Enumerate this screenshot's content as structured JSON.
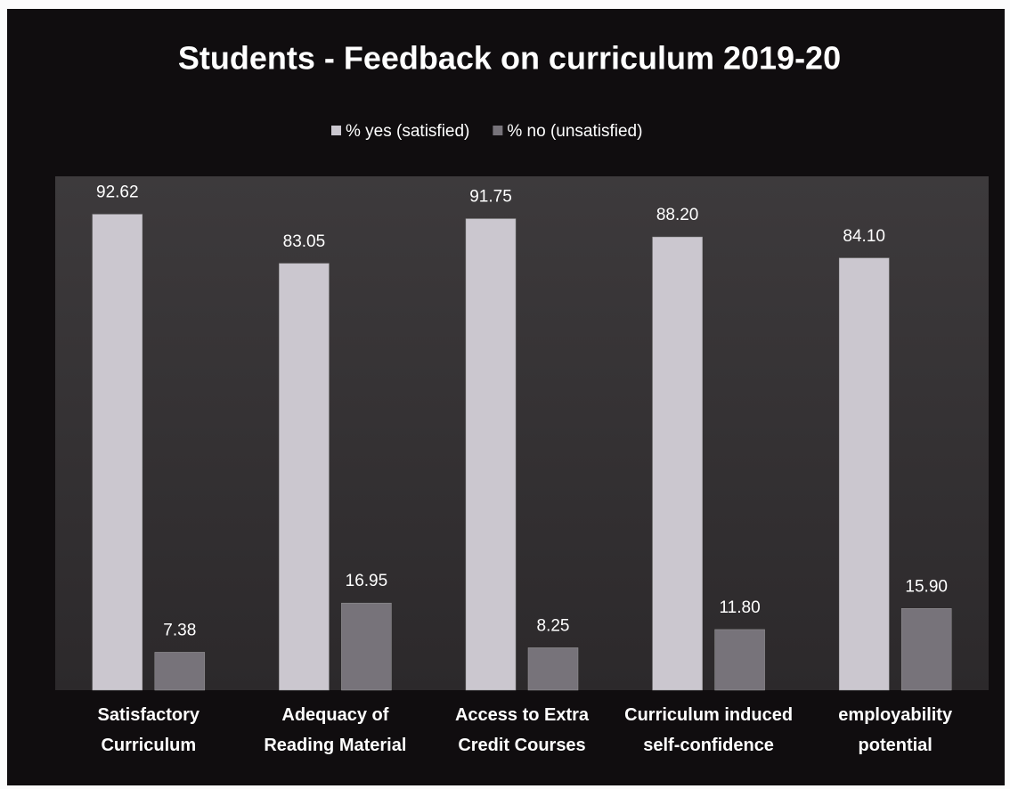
{
  "chart_data": {
    "type": "bar",
    "title": "Students - Feedback on curriculum 2019-20",
    "categories": [
      "Satisfactory Curriculum",
      "Adequacy of Reading Material",
      "Access to Extra Credit Courses",
      "Curriculum induced self-confidence",
      "employability potential"
    ],
    "series": [
      {
        "name": "% yes (satisfied)",
        "color": "#cbc7cf",
        "values": [
          92.62,
          83.05,
          91.75,
          88.2,
          84.1
        ],
        "value_labels": [
          "92.62",
          "83.05",
          "91.75",
          "88.20",
          "84.10"
        ]
      },
      {
        "name": "% no (unsatisfied)",
        "color": "#77737a",
        "values": [
          7.38,
          16.95,
          8.25,
          11.8,
          15.9
        ],
        "value_labels": [
          "7.38",
          "16.95",
          "8.25",
          "11.80",
          "15.90"
        ]
      }
    ],
    "ylim": [
      0,
      100
    ]
  }
}
